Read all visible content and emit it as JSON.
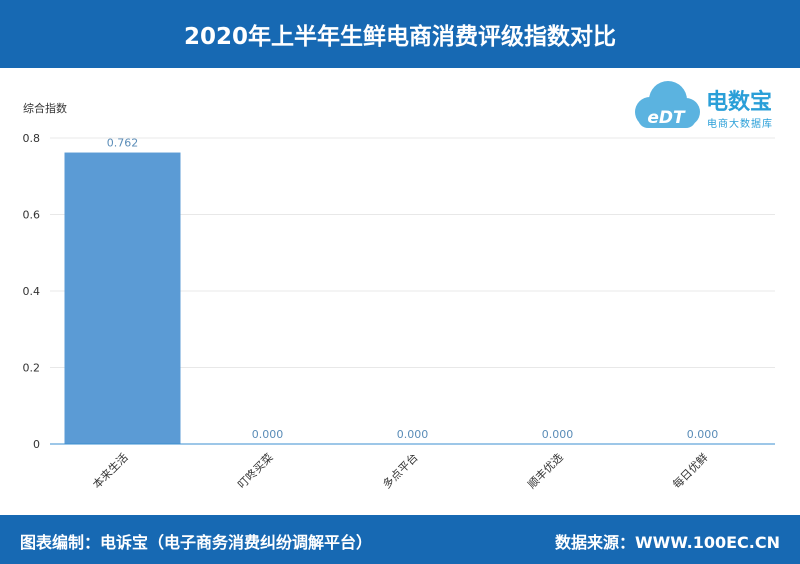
{
  "header": {
    "title": "2020年上半年生鲜电商消费评级指数对比"
  },
  "footer": {
    "credit": "图表编制：电诉宝（电子商务消费纠纷调解平台）",
    "source": "数据来源：WWW.100EC.CN"
  },
  "logo": {
    "brand": "电数宝",
    "subtitle": "电商大数据库",
    "mark": "eDT"
  },
  "colors": {
    "accent": "#1769b3",
    "bar": "#5b9bd5",
    "label": "#5b8db8"
  },
  "chart_data": {
    "type": "bar",
    "ylabel": "综合指数",
    "categories": [
      "本来生活",
      "叮咚买菜",
      "多点平台",
      "顺丰优选",
      "每日优鲜"
    ],
    "values": [
      0.762,
      0,
      0,
      0,
      0
    ],
    "data_labels": [
      "0.762",
      "0.000",
      "0.000",
      "0.000",
      "0.000"
    ],
    "yticks": [
      0,
      0.2,
      0.4,
      0.6,
      0.8
    ],
    "ytick_labels": [
      "0",
      "0.2",
      "0.4",
      "0.6",
      "0.8"
    ],
    "ylim": [
      0,
      0.8
    ],
    "grid": true,
    "legend": "none"
  }
}
